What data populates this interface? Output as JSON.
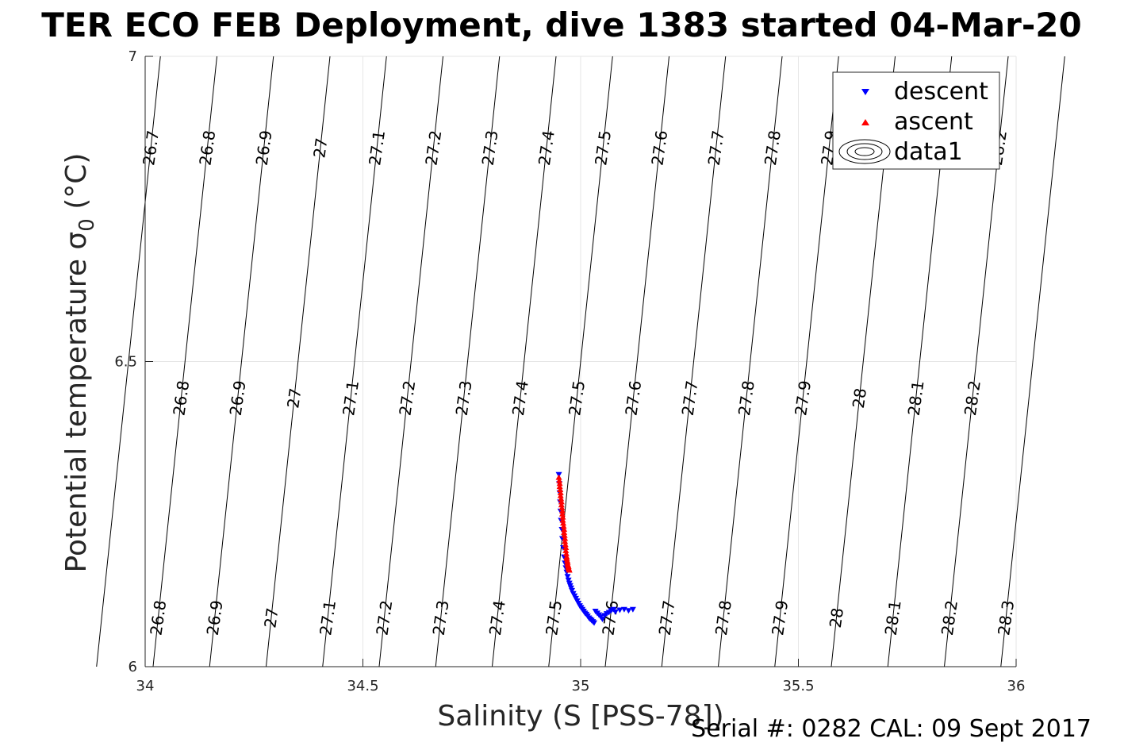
{
  "chart_data": {
    "type": "scatter",
    "title": "TER ECO FEB Deployment, dive 1383 started 04-Mar-20",
    "xlabel": "Salinity (S [PSS-78])",
    "ylabel": "Potential temperature",
    "ylabel_sub": "0",
    "ylabel_units": "(°C)",
    "xlim": [
      34,
      36
    ],
    "ylim": [
      6,
      7
    ],
    "x_ticks": [
      "34",
      "34.5",
      "35",
      "35.5",
      "36"
    ],
    "x_tick_values": [
      34,
      34.5,
      35,
      35.5,
      36
    ],
    "y_ticks": [
      "6",
      "6.5",
      "7"
    ],
    "y_tick_values": [
      6,
      6.5,
      7
    ],
    "grid": true,
    "legend_position": "top-right",
    "legend": [
      "descent",
      "ascent",
      "data1"
    ],
    "density_contours": {
      "color": "#000000",
      "values": [
        26.7,
        26.8,
        26.9,
        27.0,
        27.1,
        27.2,
        27.3,
        27.4,
        27.5,
        27.6,
        27.7,
        27.8,
        27.9,
        28.0,
        28.1,
        28.2,
        28.3
      ],
      "label_rows": [
        {
          "theta": 6.85,
          "labels": [
            "26.7",
            "26.8",
            "26.9",
            "27",
            "27.1",
            "27.2",
            "27.3",
            "27.4",
            "27.5",
            "27.6",
            "27.7",
            "27.8",
            "27.9",
            "28.2"
          ]
        },
        {
          "theta": 6.44,
          "labels": [
            "26.8",
            "26.9",
            "27",
            "27.1",
            "27.2",
            "27.3",
            "27.4",
            "27.5",
            "27.6",
            "27.7",
            "27.8",
            "27.9",
            "28",
            "28.1",
            "28.2"
          ]
        },
        {
          "theta": 6.08,
          "labels": [
            "26.8",
            "26.9",
            "27",
            "27.1",
            "27.2",
            "27.3",
            "27.4",
            "27.5",
            "27.6",
            "27.7",
            "27.8",
            "27.9",
            "28",
            "28.1",
            "28.2",
            "28.3"
          ]
        }
      ]
    },
    "series": [
      {
        "name": "descent",
        "color": "#0000ff",
        "marker": "triangle-down",
        "x": [
          34.95,
          34.951,
          34.952,
          34.953,
          34.954,
          34.955,
          34.957,
          34.958,
          34.96,
          34.962,
          34.964,
          34.966,
          34.968,
          34.97,
          34.972,
          34.974,
          34.976,
          34.978,
          34.98,
          34.983,
          34.986,
          34.989,
          34.992,
          34.995,
          34.998,
          35.001,
          35.004,
          35.007,
          35.01,
          35.013,
          35.016,
          35.019,
          35.022,
          35.025,
          35.028,
          35.031,
          35.034,
          35.038,
          35.042,
          35.046,
          35.05,
          35.055,
          35.06,
          35.065,
          35.07,
          35.075,
          35.08,
          35.09,
          35.1,
          35.11,
          35.12
        ],
        "y": [
          6.315,
          6.3,
          6.285,
          6.27,
          6.255,
          6.24,
          6.225,
          6.21,
          6.195,
          6.18,
          6.17,
          6.162,
          6.155,
          6.148,
          6.142,
          6.137,
          6.133,
          6.129,
          6.125,
          6.12,
          6.116,
          6.112,
          6.108,
          6.104,
          6.1,
          6.097,
          6.094,
          6.091,
          6.088,
          6.086,
          6.083,
          6.08,
          6.078,
          6.076,
          6.074,
          6.072,
          6.091,
          6.088,
          6.085,
          6.082,
          6.078,
          6.084,
          6.087,
          6.089,
          6.092,
          6.094,
          6.09,
          6.093,
          6.094,
          6.092,
          6.094
        ]
      },
      {
        "name": "ascent",
        "color": "#ff0000",
        "marker": "triangle-up",
        "x": [
          34.95,
          34.951,
          34.952,
          34.952,
          34.953,
          34.954,
          34.954,
          34.955,
          34.956,
          34.956,
          34.957,
          34.958,
          34.958,
          34.959,
          34.959,
          34.96,
          34.961,
          34.962,
          34.962,
          34.963,
          34.964,
          34.964,
          34.965,
          34.966,
          34.966,
          34.967,
          34.968,
          34.968,
          34.969,
          34.97,
          34.97,
          34.971,
          34.972,
          34.972,
          34.973,
          34.974
        ],
        "y": [
          6.31,
          6.305,
          6.3,
          6.295,
          6.29,
          6.285,
          6.28,
          6.275,
          6.27,
          6.265,
          6.26,
          6.255,
          6.25,
          6.245,
          6.24,
          6.235,
          6.23,
          6.225,
          6.22,
          6.215,
          6.21,
          6.205,
          6.2,
          6.195,
          6.19,
          6.185,
          6.18,
          6.177,
          6.174,
          6.171,
          6.168,
          6.166,
          6.164,
          6.162,
          6.16,
          6.158
        ]
      }
    ]
  },
  "footer": {
    "text": "Serial #: 0282  CAL: 09 Sept 2017"
  }
}
